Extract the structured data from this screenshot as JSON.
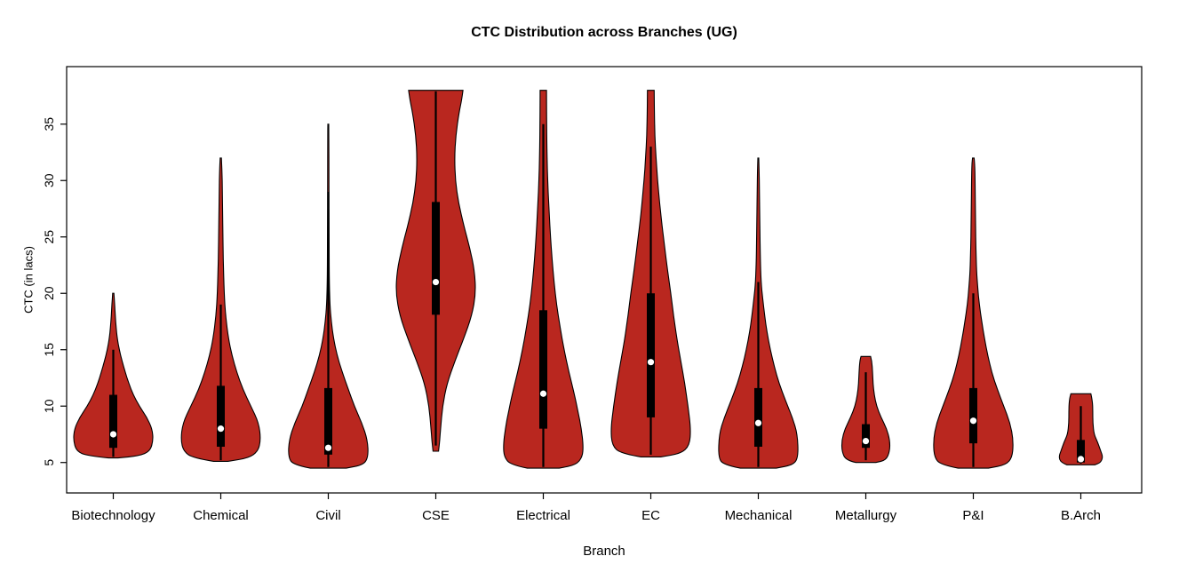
{
  "chart_data": {
    "type": "violin",
    "title": "CTC Distribution across Branches (UG)",
    "xlabel": "Branch",
    "ylabel": "CTC (in lacs)",
    "ylim": [
      2.3,
      40.1
    ],
    "yticks": [
      5,
      10,
      15,
      20,
      25,
      30,
      35
    ],
    "grid": false,
    "violin_fill": "#B9271F",
    "violin_stroke": "#000000",
    "box_color": "#000000",
    "median_dot_color": "#ffffff",
    "categories": [
      "Biotechnology",
      "Chemical",
      "Civil",
      "CSE",
      "Electrical",
      "EC",
      "Mechanical",
      "Metallurgy",
      "P&I",
      "B.Arch"
    ],
    "series": [
      {
        "name": "Biotechnology",
        "min": 5.4,
        "max": 20,
        "median": 7.5,
        "q1": 6.3,
        "q3": 11,
        "whisker_low": 5.5,
        "whisker_high": 15,
        "density": [
          [
            5.4,
            0.12
          ],
          [
            5.6,
            0.65
          ],
          [
            6.0,
            0.92
          ],
          [
            7.0,
            1.0
          ],
          [
            8.0,
            0.97
          ],
          [
            9.0,
            0.84
          ],
          [
            10.0,
            0.65
          ],
          [
            11.0,
            0.5
          ],
          [
            12.0,
            0.39
          ],
          [
            13.0,
            0.3
          ],
          [
            14.0,
            0.22
          ],
          [
            15.0,
            0.15
          ],
          [
            16.0,
            0.1
          ],
          [
            17.0,
            0.07
          ],
          [
            18.0,
            0.05
          ],
          [
            19.0,
            0.035
          ],
          [
            20.0,
            0.015
          ]
        ]
      },
      {
        "name": "Chemical",
        "min": 5.1,
        "max": 32,
        "median": 8.0,
        "q1": 6.4,
        "q3": 11.8,
        "whisker_low": 5.2,
        "whisker_high": 19,
        "density": [
          [
            5.1,
            0.18
          ],
          [
            5.4,
            0.7
          ],
          [
            6.0,
            0.93
          ],
          [
            7.0,
            1.0
          ],
          [
            8.5,
            0.95
          ],
          [
            10.0,
            0.75
          ],
          [
            11.5,
            0.55
          ],
          [
            13.0,
            0.4
          ],
          [
            14.5,
            0.28
          ],
          [
            16.0,
            0.19
          ],
          [
            18.0,
            0.12
          ],
          [
            20.0,
            0.085
          ],
          [
            23.0,
            0.06
          ],
          [
            26.0,
            0.05
          ],
          [
            29.0,
            0.04
          ],
          [
            31.0,
            0.03
          ],
          [
            32.0,
            0.015
          ]
        ]
      },
      {
        "name": "Civil",
        "min": 4.5,
        "max": 35,
        "median": 6.3,
        "q1": 5.7,
        "q3": 11.6,
        "whisker_low": 4.6,
        "whisker_high": 29,
        "density": [
          [
            4.5,
            0.45
          ],
          [
            4.8,
            0.88
          ],
          [
            5.5,
            1.0
          ],
          [
            7.0,
            0.98
          ],
          [
            8.5,
            0.84
          ],
          [
            10.0,
            0.65
          ],
          [
            11.5,
            0.5
          ],
          [
            13.0,
            0.35
          ],
          [
            14.5,
            0.22
          ],
          [
            16.0,
            0.13
          ],
          [
            17.5,
            0.075
          ],
          [
            19.0,
            0.04
          ],
          [
            21.0,
            0.025
          ],
          [
            25.0,
            0.02
          ],
          [
            30.0,
            0.016
          ],
          [
            34.0,
            0.014
          ],
          [
            35.0,
            0.012
          ]
        ]
      },
      {
        "name": "CSE",
        "min": 6,
        "max": 38,
        "median": 21,
        "q1": 18.1,
        "q3": 28.1,
        "whisker_low": 6.5,
        "whisker_high": 37.9,
        "density": [
          [
            6.0,
            0.07
          ],
          [
            7.0,
            0.1
          ],
          [
            8.0,
            0.12
          ],
          [
            10.0,
            0.17
          ],
          [
            12.0,
            0.28
          ],
          [
            14.0,
            0.48
          ],
          [
            16.0,
            0.7
          ],
          [
            18.0,
            0.9
          ],
          [
            20.0,
            1.0
          ],
          [
            22.0,
            0.97
          ],
          [
            24.0,
            0.85
          ],
          [
            26.0,
            0.7
          ],
          [
            28.0,
            0.57
          ],
          [
            30.0,
            0.49
          ],
          [
            32.0,
            0.47
          ],
          [
            34.0,
            0.5
          ],
          [
            36.0,
            0.58
          ],
          [
            37.2,
            0.65
          ],
          [
            38.0,
            0.68
          ]
        ]
      },
      {
        "name": "Electrical",
        "min": 4.5,
        "max": 38,
        "median": 11.1,
        "q1": 8.0,
        "q3": 18.5,
        "whisker_low": 4.6,
        "whisker_high": 35,
        "density": [
          [
            4.5,
            0.4
          ],
          [
            4.8,
            0.82
          ],
          [
            5.5,
            0.98
          ],
          [
            6.5,
            1.0
          ],
          [
            8.0,
            0.95
          ],
          [
            9.5,
            0.87
          ],
          [
            11.0,
            0.78
          ],
          [
            13.0,
            0.64
          ],
          [
            15.0,
            0.52
          ],
          [
            17.0,
            0.42
          ],
          [
            19.0,
            0.33
          ],
          [
            21.0,
            0.27
          ],
          [
            23.0,
            0.22
          ],
          [
            25.0,
            0.18
          ],
          [
            27.0,
            0.15
          ],
          [
            29.0,
            0.12
          ],
          [
            31.0,
            0.1
          ],
          [
            33.0,
            0.09
          ],
          [
            35.0,
            0.085
          ],
          [
            37.0,
            0.08
          ],
          [
            38.0,
            0.08
          ]
        ]
      },
      {
        "name": "EC",
        "min": 5.5,
        "max": 38,
        "median": 13.9,
        "q1": 9.0,
        "q3": 20.0,
        "whisker_low": 5.7,
        "whisker_high": 33,
        "density": [
          [
            5.5,
            0.25
          ],
          [
            5.8,
            0.75
          ],
          [
            6.5,
            0.97
          ],
          [
            8.0,
            1.0
          ],
          [
            10.0,
            0.93
          ],
          [
            12.0,
            0.85
          ],
          [
            14.0,
            0.75
          ],
          [
            16.0,
            0.65
          ],
          [
            18.0,
            0.57
          ],
          [
            20.0,
            0.5
          ],
          [
            22.0,
            0.42
          ],
          [
            24.0,
            0.35
          ],
          [
            26.0,
            0.28
          ],
          [
            28.0,
            0.22
          ],
          [
            30.0,
            0.17
          ],
          [
            32.0,
            0.13
          ],
          [
            34.0,
            0.1
          ],
          [
            36.0,
            0.09
          ],
          [
            38.0,
            0.085
          ]
        ]
      },
      {
        "name": "Mechanical",
        "min": 4.5,
        "max": 32,
        "median": 8.5,
        "q1": 6.4,
        "q3": 11.6,
        "whisker_low": 4.6,
        "whisker_high": 21,
        "density": [
          [
            4.5,
            0.45
          ],
          [
            4.8,
            0.88
          ],
          [
            5.5,
            1.0
          ],
          [
            7.5,
            0.98
          ],
          [
            9.0,
            0.85
          ],
          [
            10.5,
            0.68
          ],
          [
            12.0,
            0.52
          ],
          [
            13.5,
            0.4
          ],
          [
            15.0,
            0.3
          ],
          [
            16.5,
            0.22
          ],
          [
            18.0,
            0.16
          ],
          [
            19.5,
            0.11
          ],
          [
            21.0,
            0.07
          ],
          [
            23.0,
            0.05
          ],
          [
            26.0,
            0.038
          ],
          [
            29.0,
            0.028
          ],
          [
            31.0,
            0.02
          ],
          [
            32.0,
            0.012
          ]
        ]
      },
      {
        "name": "Metallurgy",
        "min": 5,
        "max": 14.4,
        "median": 6.9,
        "q1": 6.3,
        "q3": 8.4,
        "whisker_low": 5.2,
        "whisker_high": 13,
        "density": [
          [
            5.0,
            0.25
          ],
          [
            5.2,
            0.5
          ],
          [
            6.0,
            0.6
          ],
          [
            7.0,
            0.6
          ],
          [
            8.0,
            0.52
          ],
          [
            9.0,
            0.38
          ],
          [
            10.0,
            0.27
          ],
          [
            11.0,
            0.21
          ],
          [
            12.0,
            0.18
          ],
          [
            13.0,
            0.17
          ],
          [
            14.0,
            0.15
          ],
          [
            14.4,
            0.12
          ]
        ]
      },
      {
        "name": "P&I",
        "min": 4.5,
        "max": 32,
        "median": 8.7,
        "q1": 6.7,
        "q3": 11.6,
        "whisker_low": 4.6,
        "whisker_high": 20,
        "density": [
          [
            4.5,
            0.38
          ],
          [
            4.8,
            0.82
          ],
          [
            5.5,
            0.98
          ],
          [
            7.0,
            1.0
          ],
          [
            8.5,
            0.92
          ],
          [
            10.0,
            0.76
          ],
          [
            11.5,
            0.6
          ],
          [
            13.0,
            0.46
          ],
          [
            14.5,
            0.36
          ],
          [
            16.0,
            0.28
          ],
          [
            17.5,
            0.21
          ],
          [
            19.0,
            0.15
          ],
          [
            20.5,
            0.11
          ],
          [
            22.0,
            0.08
          ],
          [
            24.0,
            0.065
          ],
          [
            26.0,
            0.055
          ],
          [
            28.0,
            0.05
          ],
          [
            30.0,
            0.045
          ],
          [
            31.5,
            0.035
          ],
          [
            32.0,
            0.02
          ]
        ]
      },
      {
        "name": "B.Arch",
        "min": 4.8,
        "max": 11.1,
        "median": 5.3,
        "q1": 5.0,
        "q3": 7.0,
        "whisker_low": 4.9,
        "whisker_high": 10,
        "density": [
          [
            4.8,
            0.35
          ],
          [
            5.0,
            0.5
          ],
          [
            5.5,
            0.55
          ],
          [
            6.0,
            0.5
          ],
          [
            6.8,
            0.42
          ],
          [
            7.5,
            0.33
          ],
          [
            8.5,
            0.3
          ],
          [
            9.5,
            0.3
          ],
          [
            10.5,
            0.29
          ],
          [
            11.1,
            0.25
          ]
        ]
      }
    ]
  }
}
